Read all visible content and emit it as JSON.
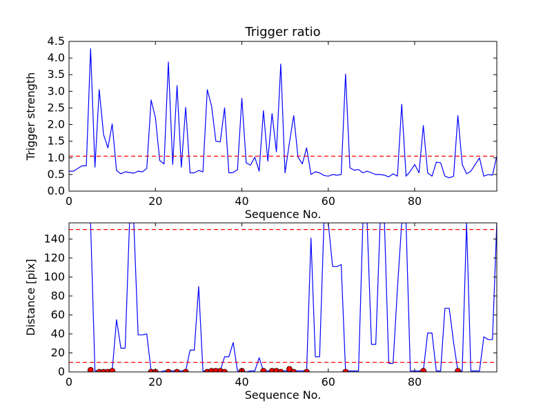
{
  "chart_data": [
    {
      "type": "line",
      "title": "Trigger ratio",
      "xlabel": "Sequence No.",
      "ylabel": "Trigger strength",
      "xlim": [
        0,
        99
      ],
      "ylim": [
        0,
        4.5
      ],
      "xticks": [
        0,
        20,
        40,
        60,
        80
      ],
      "xtick_labels": [
        "0",
        "20",
        "40",
        "60",
        "80"
      ],
      "yticks": [
        0,
        0.5,
        1,
        1.5,
        2,
        2.5,
        3,
        3.5,
        4,
        4.5
      ],
      "ytick_labels": [
        "0.0",
        "0.5",
        "1.0",
        "1.5",
        "2.0",
        "2.5",
        "3.0",
        "3.5",
        "4.0",
        "4.5"
      ],
      "grid": false,
      "series": [
        {
          "color": "#0000ff",
          "values": [
            0.6,
            0.6,
            0.68,
            0.76,
            0.76,
            4.28,
            0.72,
            3.05,
            1.7,
            1.3,
            2.02,
            0.62,
            0.52,
            0.58,
            0.56,
            0.54,
            0.6,
            0.58,
            0.68,
            2.74,
            2.2,
            0.92,
            0.82,
            3.88,
            0.8,
            3.17,
            0.72,
            2.52,
            0.55,
            0.55,
            0.62,
            0.58,
            3.05,
            2.55,
            1.5,
            1.48,
            2.5,
            0.55,
            0.56,
            0.65,
            2.79,
            0.85,
            0.78,
            1.02,
            0.6,
            2.42,
            0.9,
            2.33,
            1.18,
            3.82,
            0.55,
            1.45,
            2.27,
            1.02,
            0.82,
            1.3,
            0.5,
            0.58,
            0.55,
            0.47,
            0.45,
            0.5,
            0.48,
            0.5,
            3.52,
            0.7,
            0.63,
            0.65,
            0.55,
            0.6,
            0.55,
            0.5,
            0.5,
            0.48,
            0.43,
            0.52,
            0.45,
            2.61,
            0.45,
            0.6,
            0.8,
            0.55,
            1.97,
            0.55,
            0.45,
            0.87,
            0.85,
            0.45,
            0.4,
            0.45,
            2.27,
            0.8,
            0.52,
            0.6,
            0.8,
            1.0,
            0.45,
            0.5,
            0.48,
            1.05
          ]
        }
      ],
      "reference_lines": [
        {
          "y": 1.05,
          "color": "#ff0000",
          "style": "dashed"
        }
      ]
    },
    {
      "type": "line",
      "title": "",
      "xlabel": "Sequence No.",
      "ylabel": "Distance [pix]",
      "xlim": [
        0,
        99
      ],
      "ylim": [
        0,
        157
      ],
      "xticks": [
        0,
        20,
        40,
        60,
        80
      ],
      "xtick_labels": [
        "0",
        "20",
        "40",
        "60",
        "80"
      ],
      "yticks": [
        0,
        20,
        40,
        60,
        80,
        100,
        120,
        140
      ],
      "ytick_labels": [
        "0",
        "20",
        "40",
        "60",
        "80",
        "100",
        "120",
        "140"
      ],
      "grid": false,
      "series": [
        {
          "color": "#0000ff",
          "values": [
            null,
            null,
            null,
            null,
            null,
            157,
            1,
            1,
            1,
            1,
            1,
            55,
            25,
            25,
            157,
            157,
            39,
            39,
            40,
            1,
            1,
            0,
            1,
            1,
            1,
            1,
            1,
            1,
            23,
            23,
            90,
            1,
            1,
            1,
            1,
            1,
            16,
            16,
            31,
            1,
            1,
            0,
            1,
            1,
            15,
            1,
            1,
            1,
            1,
            1,
            1,
            1,
            1,
            1,
            1,
            1,
            141,
            16,
            16,
            157,
            157,
            111,
            111,
            113,
            1,
            1,
            1,
            1,
            157,
            157,
            29,
            29,
            157,
            157,
            9,
            9,
            88,
            157,
            157,
            1,
            1,
            1,
            1,
            41,
            41,
            1,
            1,
            67,
            67,
            31,
            1,
            1,
            157,
            1,
            1,
            1,
            37,
            34,
            34,
            157
          ]
        },
        {
          "type": "scatter",
          "color": "#ff0000",
          "marker": "circle",
          "x": [
            5,
            7,
            8,
            9,
            10,
            19,
            20,
            23,
            25,
            27,
            32,
            33,
            34,
            35,
            36,
            40,
            45,
            47,
            48,
            49,
            51,
            52,
            55,
            64,
            82,
            90
          ],
          "y": [
            2,
            0,
            0,
            0,
            1,
            0,
            0,
            0,
            0,
            0,
            0,
            1,
            1,
            1,
            0,
            1,
            1,
            1,
            1,
            0,
            3,
            0,
            0,
            0,
            1,
            1
          ]
        }
      ],
      "reference_lines": [
        {
          "y": 150,
          "color": "#ff0000",
          "style": "dashed"
        },
        {
          "y": 10,
          "color": "#ff0000",
          "style": "dashed"
        }
      ]
    }
  ]
}
